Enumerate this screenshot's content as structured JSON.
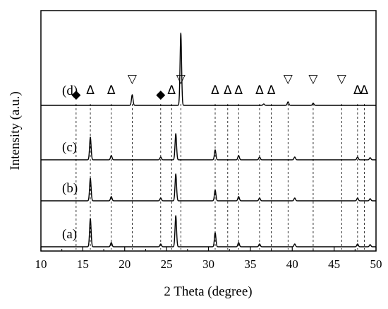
{
  "chart_data": {
    "type": "line",
    "xlabel": "2 Theta  (degree)",
    "ylabel": "Intensity (a.u.)",
    "xlim": [
      10,
      50
    ],
    "xticks": [
      10,
      15,
      20,
      25,
      30,
      35,
      40,
      45,
      50
    ],
    "grid": false,
    "legend": "none",
    "series": [
      {
        "name": "(a)",
        "peaks": [
          {
            "x": 15.9,
            "h": 40
          },
          {
            "x": 18.4,
            "h": 6
          },
          {
            "x": 24.3,
            "h": 4
          },
          {
            "x": 26.1,
            "h": 44
          },
          {
            "x": 30.8,
            "h": 20
          },
          {
            "x": 33.6,
            "h": 6
          },
          {
            "x": 36.1,
            "h": 4
          },
          {
            "x": 40.3,
            "h": 4
          },
          {
            "x": 47.8,
            "h": 4
          },
          {
            "x": 49.3,
            "h": 3
          }
        ]
      },
      {
        "name": "(b)",
        "peaks": [
          {
            "x": 15.9,
            "h": 32
          },
          {
            "x": 18.4,
            "h": 6
          },
          {
            "x": 24.3,
            "h": 4
          },
          {
            "x": 26.1,
            "h": 38
          },
          {
            "x": 30.8,
            "h": 15
          },
          {
            "x": 33.6,
            "h": 6
          },
          {
            "x": 36.1,
            "h": 4
          },
          {
            "x": 40.3,
            "h": 4
          },
          {
            "x": 47.8,
            "h": 4
          },
          {
            "x": 49.3,
            "h": 3
          }
        ]
      },
      {
        "name": "(c)",
        "peaks": [
          {
            "x": 15.9,
            "h": 32
          },
          {
            "x": 18.4,
            "h": 6
          },
          {
            "x": 24.3,
            "h": 4
          },
          {
            "x": 26.1,
            "h": 37
          },
          {
            "x": 30.8,
            "h": 14
          },
          {
            "x": 33.6,
            "h": 6
          },
          {
            "x": 36.1,
            "h": 4
          },
          {
            "x": 40.3,
            "h": 4
          },
          {
            "x": 47.8,
            "h": 4
          },
          {
            "x": 49.3,
            "h": 3
          }
        ]
      },
      {
        "name": "(d)",
        "peaks": [
          {
            "x": 20.9,
            "h": 15
          },
          {
            "x": 26.7,
            "h": 102
          },
          {
            "x": 39.5,
            "h": 5
          },
          {
            "x": 42.5,
            "h": 3
          },
          {
            "x": 36.6,
            "h": 2
          }
        ]
      }
    ],
    "reference_lines": [
      {
        "x": 14.2,
        "marker": "◆"
      },
      {
        "x": 15.9,
        "marker": "Δ"
      },
      {
        "x": 18.4,
        "marker": "Δ"
      },
      {
        "x": 20.9,
        "marker": "▽"
      },
      {
        "x": 24.3,
        "marker": "◆"
      },
      {
        "x": 25.6,
        "marker": "Δ"
      },
      {
        "x": 26.7,
        "marker": "▽"
      },
      {
        "x": 30.8,
        "marker": "Δ"
      },
      {
        "x": 32.3,
        "marker": "Δ"
      },
      {
        "x": 33.6,
        "marker": "Δ"
      },
      {
        "x": 36.1,
        "marker": "Δ"
      },
      {
        "x": 37.5,
        "marker": "Δ"
      },
      {
        "x": 39.5,
        "marker": "▽"
      },
      {
        "x": 42.5,
        "marker": "▽"
      },
      {
        "x": 45.9,
        "marker": "▽"
      },
      {
        "x": 47.8,
        "marker": "Δ"
      },
      {
        "x": 48.6,
        "marker": "Δ"
      }
    ]
  }
}
